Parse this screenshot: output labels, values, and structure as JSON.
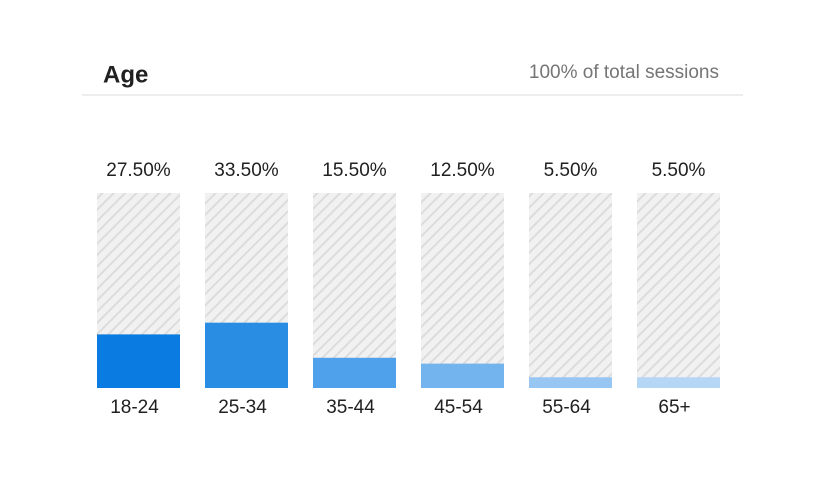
{
  "chart_data": {
    "type": "bar",
    "title": "Age",
    "subtitle": "100% of total sessions",
    "categories": [
      "18-24",
      "25-34",
      "35-44",
      "45-54",
      "55-64",
      "65+"
    ],
    "values": [
      27.5,
      33.5,
      15.5,
      12.5,
      5.5,
      5.5
    ],
    "value_labels": [
      "27.50%",
      "33.50%",
      "15.50%",
      "12.50%",
      "5.50%",
      "5.50%"
    ],
    "colors": [
      "#0a7be0",
      "#2a8de4",
      "#4ea1ea",
      "#74b4ee",
      "#97c6f2",
      "#b5d6f5"
    ],
    "ylim": [
      0,
      100
    ]
  }
}
